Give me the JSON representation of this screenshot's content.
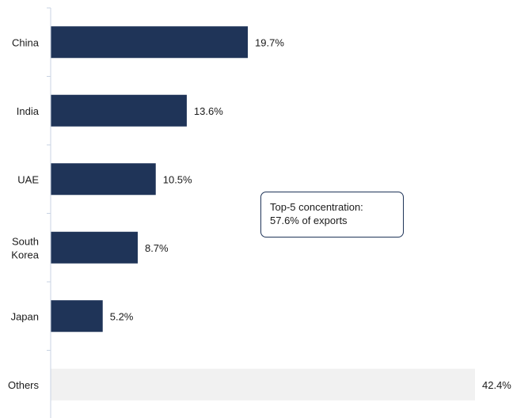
{
  "chart_data": {
    "type": "bar",
    "orientation": "horizontal",
    "categories": [
      "China",
      "India",
      "UAE",
      "South Korea",
      "Japan",
      "Others"
    ],
    "category_lines": [
      [
        "China"
      ],
      [
        "India"
      ],
      [
        "UAE"
      ],
      [
        "South",
        "Korea"
      ],
      [
        "Japan"
      ],
      [
        "Others"
      ]
    ],
    "values": [
      19.7,
      13.6,
      10.5,
      8.7,
      5.2,
      42.4
    ],
    "value_labels": [
      "19.7%",
      "13.6%",
      "10.5%",
      "8.7%",
      "5.2%",
      "42.4%"
    ],
    "xlim": [
      0,
      42.4
    ],
    "grid": false,
    "bar_colors": [
      "#1f3458",
      "#1f3458",
      "#1f3458",
      "#1f3458",
      "#1f3458",
      "#f1f1f1"
    ],
    "annotation": {
      "line1": "Top-5 concentration:",
      "line2": "57.6% of exports"
    }
  }
}
